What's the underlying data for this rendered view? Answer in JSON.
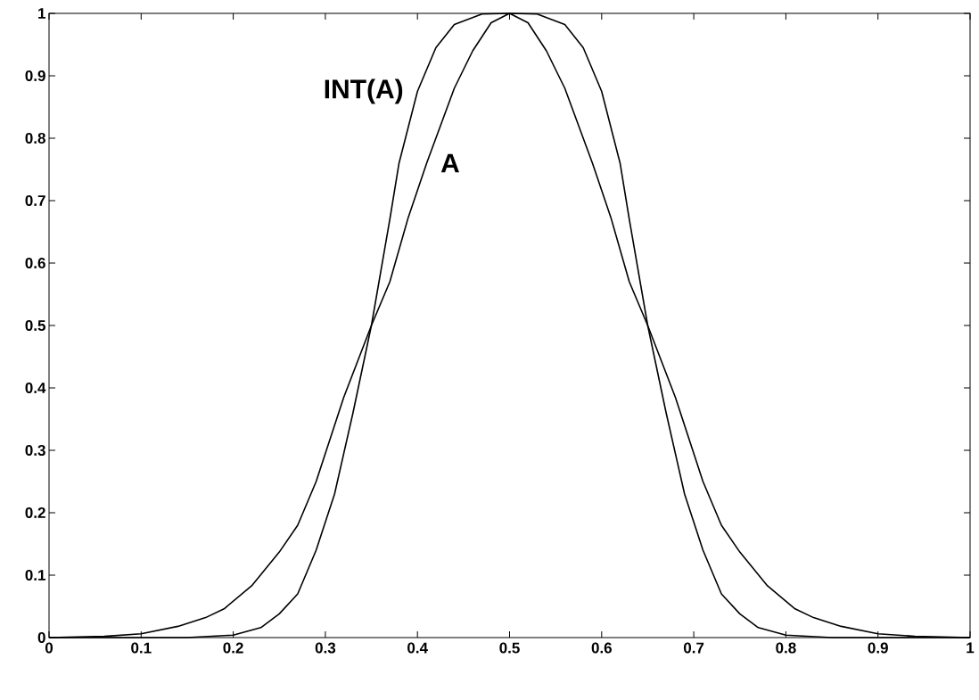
{
  "chart_data": {
    "type": "line",
    "xlim": [
      0,
      1
    ],
    "ylim": [
      0,
      1
    ],
    "xticks": [
      0,
      0.1,
      0.2,
      0.3,
      0.4,
      0.5,
      0.6,
      0.7,
      0.8,
      0.9,
      1
    ],
    "yticks": [
      0,
      0.1,
      0.2,
      0.3,
      0.4,
      0.5,
      0.6,
      0.7,
      0.8,
      0.9,
      1
    ],
    "grid": false,
    "marker": "none",
    "line_style": "solid",
    "series": [
      {
        "name": "A",
        "color": "#000000",
        "x": [
          0,
          0.06,
          0.1,
          0.14,
          0.17,
          0.19,
          0.22,
          0.25,
          0.27,
          0.29,
          0.32,
          0.35,
          0.37,
          0.39,
          0.41,
          0.44,
          0.46,
          0.48,
          0.5,
          0.52,
          0.54,
          0.56,
          0.59,
          0.61,
          0.63,
          0.65,
          0.68,
          0.71,
          0.73,
          0.75,
          0.78,
          0.81,
          0.83,
          0.86,
          0.9,
          0.94,
          1
        ],
        "values": [
          0,
          0.002,
          0.006,
          0.018,
          0.032,
          0.046,
          0.083,
          0.137,
          0.18,
          0.25,
          0.385,
          0.5,
          0.57,
          0.673,
          0.76,
          0.88,
          0.94,
          0.985,
          1,
          0.985,
          0.94,
          0.88,
          0.76,
          0.673,
          0.57,
          0.5,
          0.385,
          0.25,
          0.18,
          0.137,
          0.083,
          0.046,
          0.032,
          0.018,
          0.006,
          0.002,
          0
        ]
      },
      {
        "name": "INT(A)",
        "color": "#000000",
        "x": [
          0,
          0.15,
          0.2,
          0.23,
          0.25,
          0.27,
          0.29,
          0.31,
          0.33,
          0.35,
          0.37,
          0.38,
          0.4,
          0.42,
          0.44,
          0.47,
          0.5,
          0.53,
          0.56,
          0.58,
          0.6,
          0.62,
          0.63,
          0.65,
          0.67,
          0.69,
          0.71,
          0.73,
          0.75,
          0.77,
          0.8,
          0.85,
          1
        ],
        "values": [
          0,
          0,
          0.004,
          0.016,
          0.038,
          0.07,
          0.14,
          0.23,
          0.36,
          0.5,
          0.67,
          0.76,
          0.875,
          0.945,
          0.982,
          0.999,
          1,
          0.999,
          0.982,
          0.945,
          0.875,
          0.76,
          0.67,
          0.5,
          0.36,
          0.23,
          0.14,
          0.07,
          0.038,
          0.016,
          0.004,
          0,
          0
        ]
      }
    ]
  }
}
